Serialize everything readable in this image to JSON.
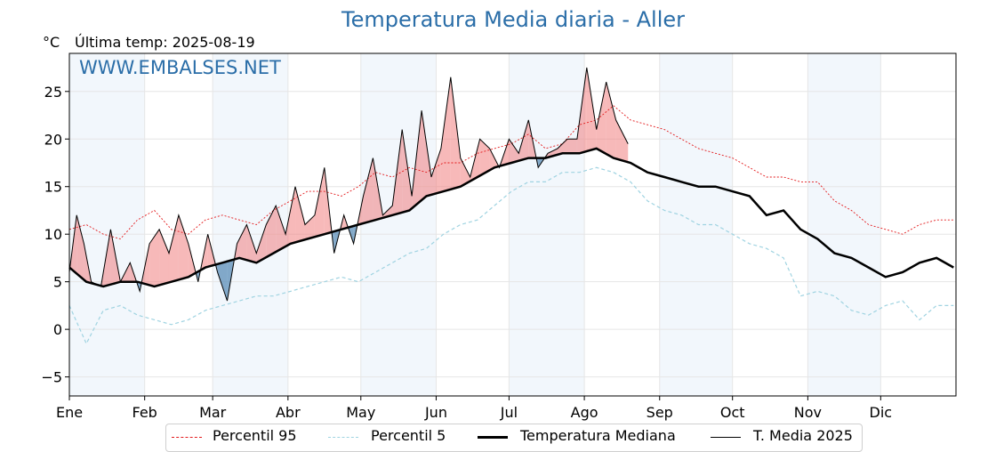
{
  "chart_data": {
    "type": "line",
    "title": "Temperatura Media diaria - Aller",
    "ylabel": "°C",
    "last_temp_text": "Última temp: 2025-08-19",
    "watermark": "WWW.EMBALSES.NET",
    "ylim": [
      -7,
      29
    ],
    "yticks": [
      -5,
      0,
      5,
      10,
      15,
      20,
      25
    ],
    "months": [
      "Ene",
      "Feb",
      "Mar",
      "Abr",
      "May",
      "Jun",
      "Jul",
      "Ago",
      "Sep",
      "Oct",
      "Nov",
      "Dic"
    ],
    "grid": true,
    "legend_position": "bottom",
    "colors": {
      "p95": "#e31a1c",
      "p5": "#9fd3e1",
      "median": "#000000",
      "current": "#000000",
      "above_fill": "#f08080",
      "below_fill": "#5b8db8",
      "month_band": "#f2f7fc"
    },
    "series": [
      {
        "name": "Percentil 95",
        "x": [
          1,
          8,
          15,
          22,
          29,
          36,
          43,
          50,
          57,
          64,
          71,
          78,
          85,
          92,
          99,
          106,
          113,
          120,
          127,
          134,
          141,
          148,
          155,
          162,
          169,
          176,
          183,
          190,
          197,
          204,
          211,
          218,
          225,
          232,
          239,
          246,
          253,
          260,
          267,
          274,
          281,
          288,
          295,
          302,
          309,
          316,
          323,
          330,
          337,
          344,
          351,
          358,
          365
        ],
        "y": [
          10.5,
          11,
          10,
          9.5,
          11.5,
          12.5,
          10.5,
          10,
          11.5,
          12,
          11.5,
          11,
          12.5,
          13.5,
          14.5,
          14.5,
          14,
          15,
          16.5,
          16,
          17,
          16.5,
          17.5,
          17.5,
          18.5,
          19,
          19.5,
          20.5,
          19,
          19.5,
          21.5,
          22,
          23.5,
          22,
          21.5,
          21,
          20,
          19,
          18.5,
          18,
          17,
          16,
          16,
          15.5,
          15.5,
          13.5,
          12.5,
          11,
          10.5,
          10,
          11,
          11.5,
          11.5
        ]
      },
      {
        "name": "Percentil 5",
        "x": [
          1,
          8,
          15,
          22,
          29,
          36,
          43,
          50,
          57,
          64,
          71,
          78,
          85,
          92,
          99,
          106,
          113,
          120,
          127,
          134,
          141,
          148,
          155,
          162,
          169,
          176,
          183,
          190,
          197,
          204,
          211,
          218,
          225,
          232,
          239,
          246,
          253,
          260,
          267,
          274,
          281,
          288,
          295,
          302,
          309,
          316,
          323,
          330,
          337,
          344,
          351,
          358,
          365
        ],
        "y": [
          2.5,
          -1.5,
          2,
          2.5,
          1.5,
          1,
          0.5,
          1,
          2,
          2.5,
          3,
          3.5,
          3.5,
          4,
          4.5,
          5,
          5.5,
          5,
          6,
          7,
          8,
          8.5,
          10,
          11,
          11.5,
          13,
          14.5,
          15.5,
          15.5,
          16.5,
          16.5,
          17,
          16.5,
          15.5,
          13.5,
          12.5,
          12,
          11,
          11,
          10,
          9,
          8.5,
          7.5,
          3.5,
          4,
          3.5,
          2,
          1.5,
          2.5,
          3,
          1,
          2.5,
          2.5
        ]
      },
      {
        "name": "Temperatura Mediana",
        "x": [
          1,
          8,
          15,
          22,
          29,
          36,
          43,
          50,
          57,
          64,
          71,
          78,
          85,
          92,
          99,
          106,
          113,
          120,
          127,
          134,
          141,
          148,
          155,
          162,
          169,
          176,
          183,
          190,
          197,
          204,
          211,
          218,
          225,
          232,
          239,
          246,
          253,
          260,
          267,
          274,
          281,
          288,
          295,
          302,
          309,
          316,
          323,
          330,
          337,
          344,
          351,
          358,
          365
        ],
        "y": [
          6.5,
          5,
          4.5,
          5,
          5,
          4.5,
          5,
          5.5,
          6.5,
          7,
          7.5,
          7,
          8,
          9,
          9.5,
          10,
          10.5,
          11,
          11.5,
          12,
          12.5,
          14,
          14.5,
          15,
          16,
          17,
          17.5,
          18,
          18,
          18.5,
          18.5,
          19,
          18,
          17.5,
          16.5,
          16,
          15.5,
          15,
          15,
          14.5,
          14,
          12,
          12.5,
          10.5,
          9.5,
          8,
          7.5,
          6.5,
          5.5,
          6,
          7,
          7.5,
          6.5
        ]
      },
      {
        "name": "T. Media 2025",
        "x": [
          1,
          4,
          7,
          10,
          14,
          18,
          22,
          26,
          30,
          34,
          38,
          42,
          46,
          50,
          54,
          58,
          62,
          66,
          70,
          74,
          78,
          82,
          86,
          90,
          94,
          98,
          102,
          106,
          110,
          114,
          118,
          122,
          126,
          130,
          134,
          138,
          142,
          146,
          150,
          154,
          158,
          162,
          166,
          170,
          174,
          178,
          182,
          186,
          190,
          194,
          198,
          202,
          206,
          210,
          214,
          218,
          222,
          226,
          231
        ],
        "y": [
          6,
          12,
          9,
          5,
          4.5,
          10.5,
          5,
          7,
          4,
          9,
          10.5,
          8,
          12,
          9,
          5,
          10,
          6,
          3,
          9,
          11,
          8,
          11,
          13,
          10,
          15,
          11,
          12,
          17,
          8,
          12,
          9,
          14,
          18,
          12,
          13,
          21,
          14,
          23,
          16,
          19,
          26.5,
          18,
          16,
          20,
          19,
          17,
          20,
          18.5,
          22,
          17,
          18.5,
          19,
          20,
          20,
          27.5,
          21,
          26,
          22,
          19.5
        ]
      }
    ]
  },
  "legend": {
    "items": [
      "Percentil 95",
      "Percentil 5",
      "Temperatura Mediana",
      "T. Media 2025"
    ]
  }
}
